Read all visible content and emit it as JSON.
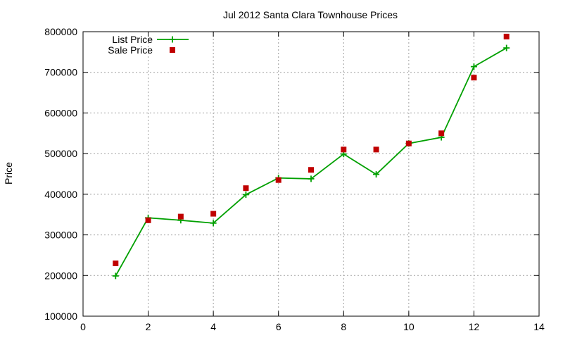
{
  "chart_data": {
    "type": "line",
    "title": "Jul 2012 Santa Clara Townhouse Prices",
    "xlabel": "",
    "ylabel": "Price",
    "xlim": [
      0,
      14
    ],
    "ylim": [
      100000,
      800000
    ],
    "xticks": [
      0,
      2,
      4,
      6,
      8,
      10,
      12,
      14
    ],
    "yticks": [
      100000,
      200000,
      300000,
      400000,
      500000,
      600000,
      700000,
      800000
    ],
    "xtick_labels": [
      "0",
      "2",
      "4",
      "6",
      "8",
      "10",
      "12",
      "14"
    ],
    "ytick_labels": [
      "100000",
      "200000",
      "300000",
      "400000",
      "500000",
      "600000",
      "700000",
      "800000"
    ],
    "grid": true,
    "legend_position": "top-left",
    "series": [
      {
        "name": "List Price",
        "style": "linespoints",
        "marker": "plus",
        "color": "#00a000",
        "x": [
          1,
          2,
          3,
          4,
          5,
          6,
          7,
          8,
          9,
          10,
          11,
          12,
          13
        ],
        "y": [
          199000,
          342000,
          336000,
          329000,
          399000,
          440000,
          438000,
          499000,
          449000,
          525000,
          540000,
          714000,
          760000
        ]
      },
      {
        "name": "Sale Price",
        "style": "points",
        "marker": "square",
        "color": "#c00000",
        "x": [
          1,
          2,
          3,
          4,
          5,
          6,
          7,
          8,
          9,
          10,
          11,
          12,
          13
        ],
        "y": [
          230000,
          336000,
          345000,
          352000,
          415000,
          435000,
          460000,
          510000,
          510000,
          525000,
          550000,
          687000,
          788000
        ]
      }
    ]
  }
}
